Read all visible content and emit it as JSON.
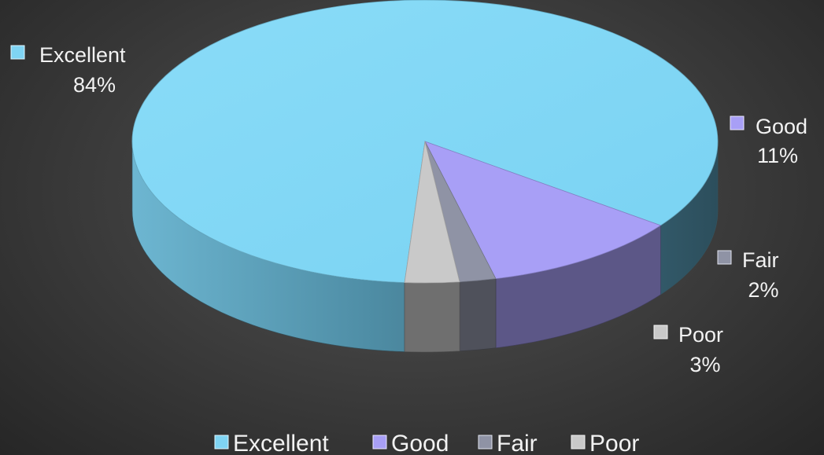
{
  "chart_data": {
    "type": "pie",
    "style": "3d",
    "categories": [
      "Excellent",
      "Good",
      "Fair",
      "Poor"
    ],
    "values": [
      84,
      11,
      2,
      3
    ],
    "data_labels": [
      "84%",
      "11%",
      "2%",
      "3%"
    ],
    "colors": [
      "#7fd4f3",
      "#a89ff6",
      "#8f93a5",
      "#c9c9c9"
    ],
    "legend_position": "bottom"
  }
}
